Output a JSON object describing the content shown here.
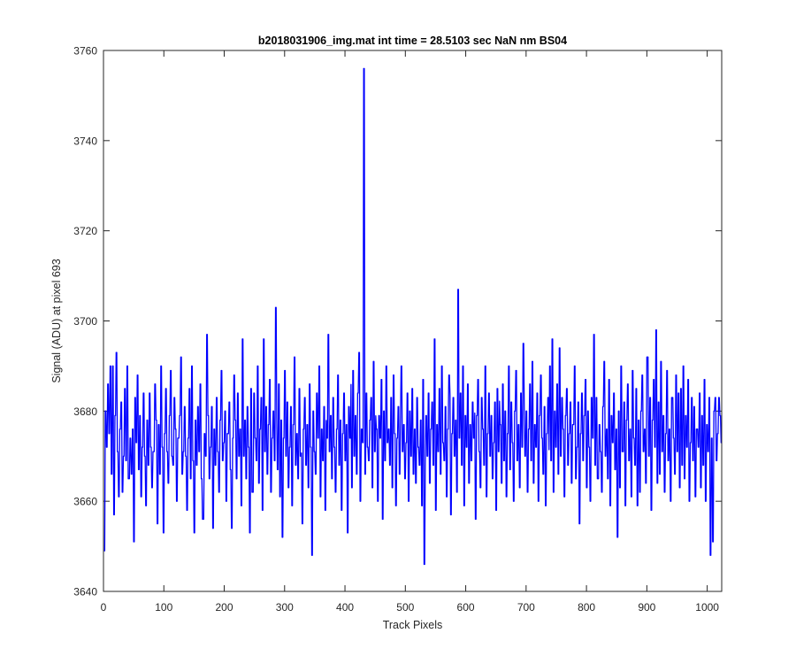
{
  "chart_data": {
    "type": "line",
    "title": "b2018031906_img.mat int time = 28.5103 sec  NaN nm BS04",
    "xlabel": "Track Pixels",
    "ylabel": "Signal (ADU) at pixel 693",
    "xlim": [
      0,
      1024
    ],
    "ylim": [
      3640,
      3760
    ],
    "xticks": [
      0,
      100,
      200,
      300,
      400,
      500,
      600,
      700,
      800,
      900,
      1000
    ],
    "yticks": [
      3640,
      3660,
      3680,
      3700,
      3720,
      3740,
      3760
    ],
    "grid": false,
    "legend": "none",
    "series": [
      {
        "color": "#0000ff",
        "x_start": 1,
        "x_step": 1,
        "baseline": 3675,
        "noise_amplitude": 11,
        "values": [
          3649,
          3680,
          3672,
          3686,
          3675,
          3690,
          3666,
          3690,
          3657,
          3679,
          3693,
          3671,
          3661,
          3676,
          3682,
          3662,
          3670,
          3685,
          3669,
          3690,
          3665,
          3674,
          3666,
          3676,
          3651,
          3683,
          3673,
          3688,
          3667,
          3679,
          3661,
          3672,
          3684,
          3670,
          3659,
          3678,
          3668,
          3684,
          3672,
          3663,
          3671,
          3686,
          3678,
          3655,
          3677,
          3666,
          3690,
          3672,
          3653,
          3675,
          3685,
          3671,
          3664,
          3679,
          3689,
          3670,
          3668,
          3683,
          3676,
          3660,
          3674,
          3679,
          3692,
          3666,
          3671,
          3681,
          3670,
          3658,
          3674,
          3685,
          3665,
          3690,
          3669,
          3653,
          3678,
          3668,
          3681,
          3671,
          3686,
          3665,
          3656,
          3675,
          3670,
          3697,
          3679,
          3665,
          3672,
          3681,
          3654,
          3676,
          3668,
          3683,
          3671,
          3662,
          3678,
          3689,
          3669,
          3673,
          3680,
          3660,
          3675,
          3682,
          3667,
          3654,
          3674,
          3688,
          3678,
          3665,
          3684,
          3670,
          3676,
          3659,
          3696,
          3670,
          3678,
          3665,
          3681,
          3672,
          3653,
          3685,
          3662,
          3684,
          3674,
          3669,
          3690,
          3664,
          3676,
          3683,
          3658,
          3696,
          3671,
          3681,
          3666,
          3677,
          3687,
          3662,
          3674,
          3680,
          3669,
          3703,
          3667,
          3686,
          3661,
          3678,
          3652,
          3674,
          3689,
          3670,
          3682,
          3663,
          3672,
          3681,
          3659,
          3677,
          3692,
          3668,
          3675,
          3665,
          3685,
          3670,
          3655,
          3676,
          3683,
          3668,
          3677,
          3663,
          3686,
          3672,
          3648,
          3680,
          3671,
          3666,
          3684,
          3674,
          3690,
          3661,
          3676,
          3669,
          3681,
          3658,
          3674,
          3697,
          3671,
          3679,
          3665,
          3683,
          3672,
          3662,
          3676,
          3688,
          3668,
          3678,
          3658,
          3675,
          3684,
          3669,
          3677,
          3653,
          3681,
          3674,
          3663,
          3689,
          3670,
          3679,
          3666,
          3684,
          3693,
          3660,
          3676,
          3673,
          3756,
          3666,
          3684,
          3672,
          3669,
          3678,
          3683,
          3663,
          3691,
          3671,
          3676,
          3660,
          3679,
          3674,
          3687,
          3656,
          3680,
          3669,
          3690,
          3673,
          3676,
          3668,
          3683,
          3663,
          3688,
          3675,
          3659,
          3674,
          3681,
          3666,
          3690,
          3671,
          3677,
          3665,
          3673,
          3684,
          3660,
          3680,
          3670,
          3685,
          3666,
          3676,
          3664,
          3683,
          3672,
          3668,
          3678,
          3659,
          3687,
          3646,
          3679,
          3670,
          3684,
          3664,
          3676,
          3682,
          3668,
          3696,
          3658,
          3677,
          3671,
          3685,
          3666,
          3690,
          3673,
          3669,
          3681,
          3661,
          3676,
          3688,
          3657,
          3675,
          3683,
          3670,
          3678,
          3662,
          3707,
          3674,
          3684,
          3668,
          3690,
          3659,
          3679,
          3672,
          3686,
          3664,
          3677,
          3669,
          3682,
          3674,
          3656,
          3679,
          3687,
          3671,
          3663,
          3683,
          3676,
          3668,
          3690,
          3661,
          3675,
          3684,
          3670,
          3679,
          3665,
          3673,
          3682,
          3658,
          3685,
          3671,
          3677,
          3664,
          3686,
          3669,
          3680,
          3661,
          3675,
          3690,
          3667,
          3682,
          3673,
          3660,
          3680,
          3689,
          3669,
          3677,
          3663,
          3684,
          3672,
          3695,
          3670,
          3680,
          3662,
          3676,
          3686,
          3669,
          3691,
          3664,
          3677,
          3672,
          3684,
          3660,
          3679,
          3688,
          3674,
          3666,
          3681,
          3659,
          3675,
          3683,
          3690,
          3669,
          3696,
          3662,
          3680,
          3672,
          3686,
          3666,
          3694,
          3670,
          3683,
          3676,
          3661,
          3679,
          3685,
          3668,
          3675,
          3682,
          3664,
          3677,
          3690,
          3665,
          3672,
          3682,
          3655,
          3675,
          3684,
          3669,
          3679,
          3687,
          3663,
          3680,
          3672,
          3660,
          3683,
          3674,
          3697,
          3668,
          3683,
          3665,
          3677,
          3671,
          3662,
          3681,
          3691,
          3670,
          3676,
          3665,
          3687,
          3659,
          3679,
          3673,
          3684,
          3667,
          3676,
          3652,
          3680,
          3663,
          3690,
          3671,
          3682,
          3659,
          3678,
          3686,
          3669,
          3676,
          3661,
          3689,
          3674,
          3668,
          3685,
          3659,
          3678,
          3662,
          3680,
          3688,
          3671,
          3676,
          3664,
          3692,
          3670,
          3683,
          3658,
          3678,
          3687,
          3672,
          3698,
          3664,
          3682,
          3666,
          3691,
          3671,
          3679,
          3662,
          3675,
          3689,
          3669,
          3676,
          3660,
          3683,
          3674,
          3666,
          3688,
          3671,
          3684,
          3663,
          3685,
          3668,
          3690,
          3665,
          3679,
          3672,
          3687,
          3660,
          3673,
          3683,
          3669,
          3681,
          3661,
          3676,
          3672,
          3684,
          3663,
          3679,
          3668,
          3687,
          3660,
          3677,
          3671,
          3683,
          3648,
          3674,
          3651,
          3680,
          3683,
          3669,
          3675,
          3683,
          3679,
          3673
        ]
      }
    ]
  }
}
